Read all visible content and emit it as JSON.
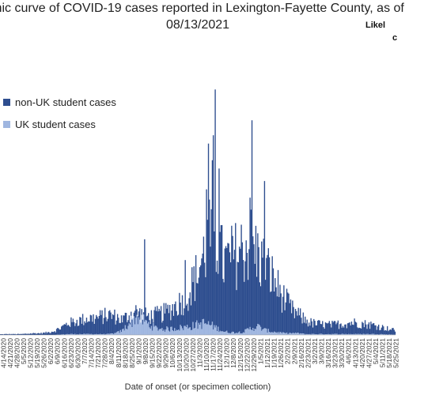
{
  "chart_data": {
    "type": "bar",
    "stacked": true,
    "title_line1": "mic curve of COVID-19 cases reported in Lexington-Fayette County, as of",
    "title_line2": "08/13/2021",
    "aside_line1": "Likel",
    "aside_line2": "c",
    "xlabel": "Date of onset (or specimen collection)",
    "legend_placement": "left",
    "colors": {
      "non_uk": "#2e4e8f",
      "uk": "#9fb6e0"
    },
    "series": [
      {
        "name": "non-UK student cases",
        "key": "non_uk"
      },
      {
        "name": "UK student cases",
        "key": "uk"
      }
    ],
    "x_start": "2020-04-14",
    "x_end": "2021-05-27",
    "tick_labels": [
      "4/14/2020",
      "4/21/2020",
      "4/28/2020",
      "5/5/2020",
      "5/12/2020",
      "5/19/2020",
      "5/26/2020",
      "6/2/2020",
      "6/9/2020",
      "6/16/2020",
      "6/23/2020",
      "6/30/2020",
      "7/7/2020",
      "7/14/2020",
      "7/21/2020",
      "7/28/2020",
      "8/4/2020",
      "8/11/2020",
      "8/18/2020",
      "8/25/2020",
      "9/1/2020",
      "9/8/2020",
      "9/15/2020",
      "9/22/2020",
      "9/29/2020",
      "10/6/2020",
      "10/13/2020",
      "10/20/2020",
      "10/27/2020",
      "11/3/2020",
      "11/10/2020",
      "11/17/2020",
      "11/24/2020",
      "12/1/2020",
      "12/8/2020",
      "12/15/2020",
      "12/22/2020",
      "12/29/2020",
      "1/5/2021",
      "1/12/2021",
      "1/19/2021",
      "1/26/2021",
      "2/2/2021",
      "2/9/2021",
      "2/16/2021",
      "2/23/2021",
      "3/2/2021",
      "3/9/2021",
      "3/16/2021",
      "3/23/2021",
      "3/30/2021",
      "4/6/2021",
      "4/13/2021",
      "4/20/2021",
      "4/27/2021",
      "5/4/2021",
      "5/11/2021",
      "5/18/2021",
      "5/25/2021"
    ],
    "weekly_non_uk_level": [
      0.8,
      1,
      1,
      1,
      1.5,
      2,
      2,
      3,
      5,
      9,
      14,
      16,
      18,
      20,
      20,
      22,
      24,
      22,
      18,
      24,
      28,
      24,
      22,
      24,
      26,
      30,
      36,
      42,
      55,
      72,
      96,
      118,
      112,
      86,
      92,
      98,
      104,
      110,
      96,
      84,
      72,
      56,
      42,
      30,
      24,
      18,
      14,
      13,
      12,
      12,
      13,
      14,
      15,
      14,
      13,
      12,
      10,
      8,
      6
    ],
    "weekly_uk_level": [
      0,
      0,
      0,
      0,
      0,
      0,
      0,
      0,
      0,
      0.5,
      1,
      1,
      1,
      1,
      1,
      1,
      1,
      2,
      5,
      14,
      22,
      18,
      12,
      8,
      7,
      7,
      8,
      9,
      10,
      12,
      14,
      12,
      8,
      4,
      3,
      3,
      4,
      8,
      10,
      6,
      4,
      3,
      2,
      2,
      2,
      1,
      1,
      1,
      1,
      1,
      1,
      1,
      1,
      1,
      1,
      1,
      1,
      0.5,
      0.5
    ],
    "spikes": [
      {
        "date": "2020-11-15",
        "value": 230
      },
      {
        "date": "2020-11-20",
        "value": 240
      },
      {
        "date": "2020-11-22",
        "value": 295
      },
      {
        "date": "2020-11-19",
        "value": 210
      },
      {
        "date": "2020-11-26",
        "value": 200
      },
      {
        "date": "2020-12-30",
        "value": 258
      },
      {
        "date": "2020-12-28",
        "value": 165
      },
      {
        "date": "2021-01-12",
        "value": 185
      },
      {
        "date": "2020-11-13",
        "value": 175
      },
      {
        "date": "2020-09-10",
        "value": 115
      },
      {
        "date": "2020-10-22",
        "value": 90
      }
    ],
    "ylim": [
      0,
      300
    ]
  }
}
